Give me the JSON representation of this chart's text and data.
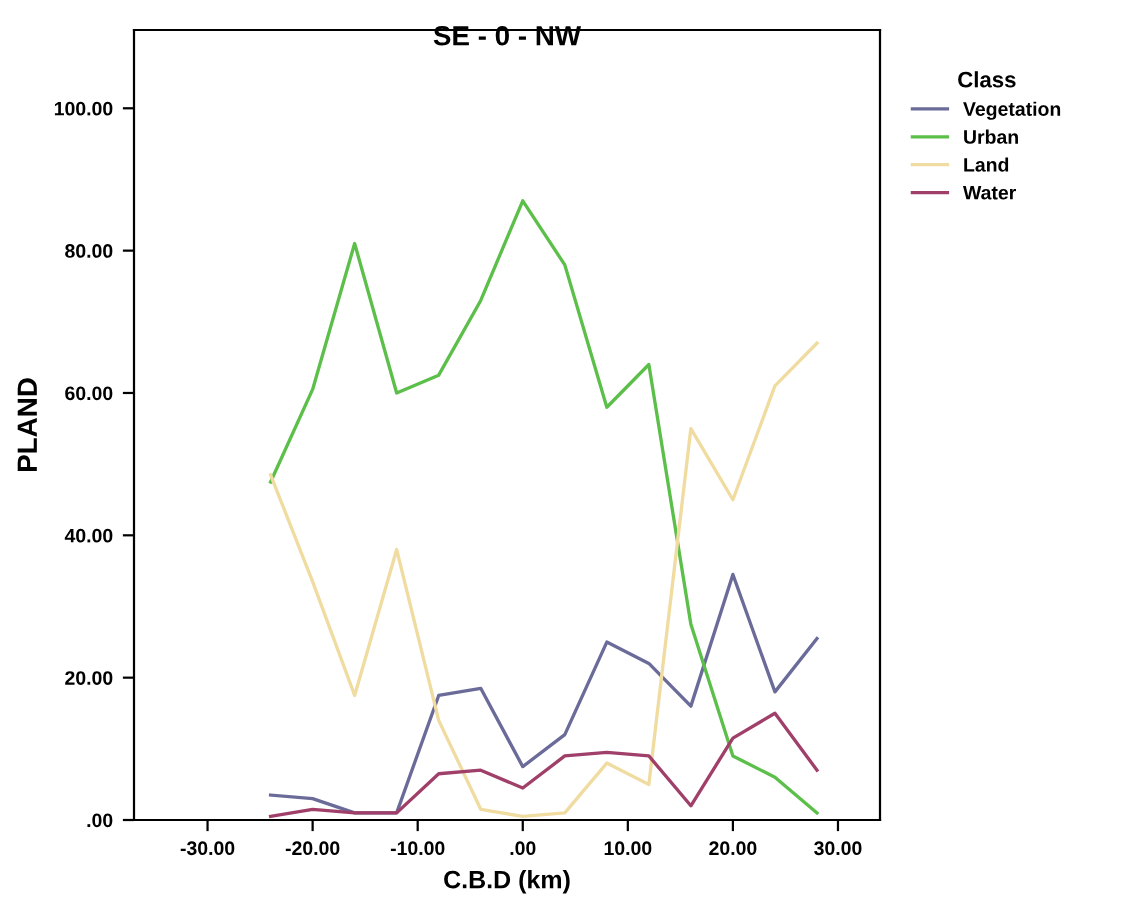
{
  "chart_data": {
    "type": "line",
    "title": "SE - 0 - NW",
    "xlabel": "C.B.D (km)",
    "ylabel": "PLAND",
    "legend_title": "Class",
    "legend": "right",
    "grid": false,
    "marker": "none",
    "line_style": "solid",
    "x": [
      -24,
      -20,
      -16,
      -12,
      -8,
      -4,
      0,
      4,
      8,
      12,
      16,
      20,
      24,
      28
    ],
    "xlim": [
      -37,
      34
    ],
    "ylim": [
      0,
      111
    ],
    "xticks": [
      {
        "value": -30,
        "label": "-30.00"
      },
      {
        "value": -20,
        "label": "-20.00"
      },
      {
        "value": -10,
        "label": "-10.00"
      },
      {
        "value": 0,
        "label": ".00"
      },
      {
        "value": 10,
        "label": "10.00"
      },
      {
        "value": 20,
        "label": "20.00"
      },
      {
        "value": 30,
        "label": "30.00"
      }
    ],
    "yticks": [
      {
        "value": 0,
        "label": ".00"
      },
      {
        "value": 20,
        "label": "20.00"
      },
      {
        "value": 40,
        "label": "40.00"
      },
      {
        "value": 60,
        "label": "60.00"
      },
      {
        "value": 80,
        "label": "80.00"
      },
      {
        "value": 100,
        "label": "100.00"
      }
    ],
    "series": [
      {
        "name": "Vegetation",
        "color": "#6b6b9a",
        "values": [
          3.5,
          3,
          1,
          1,
          17.5,
          18.5,
          7.5,
          12,
          25,
          22,
          16,
          34.5,
          18,
          25.5
        ]
      },
      {
        "name": "Urban",
        "color": "#5cbf4a",
        "values": [
          47.5,
          60.5,
          81,
          60,
          62.5,
          73,
          87,
          78,
          58,
          64,
          27.5,
          9,
          6,
          1
        ]
      },
      {
        "name": "Land",
        "color": "#f0dca0",
        "values": [
          48.5,
          33.5,
          17.5,
          38,
          14,
          1.5,
          0.5,
          1,
          8,
          5,
          55,
          45,
          61,
          67
        ]
      },
      {
        "name": "Water",
        "color": "#a0406a",
        "values": [
          0.5,
          1.5,
          1,
          1,
          6.5,
          7,
          4.5,
          9,
          9.5,
          9,
          2,
          11.5,
          15,
          7
        ]
      }
    ]
  }
}
